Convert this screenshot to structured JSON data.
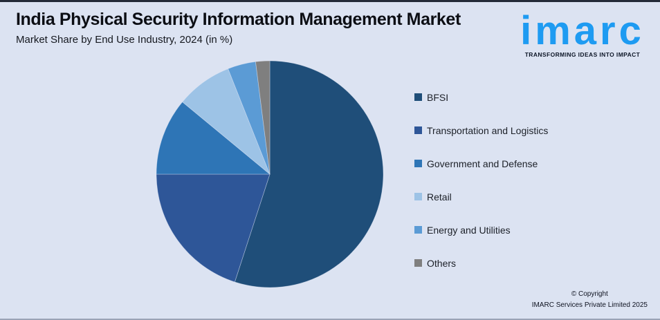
{
  "page": {
    "background_color": "#dce3f2"
  },
  "header": {
    "title": "India Physical Security Information Management Market",
    "subtitle": "Market Share by End Use Industry, 2024 (in %)"
  },
  "logo": {
    "brand": "imarc",
    "tagline": "TRANSFORMING IDEAS INTO IMPACT",
    "brand_color": "#1e9bf2"
  },
  "chart_data": {
    "type": "pie",
    "title": "India Physical Security Information Management Market",
    "subtitle": "Market Share by End Use Industry, 2024 (in %)",
    "labels": [
      "BFSI",
      "Transportation and Logistics",
      "Government and Defense",
      "Retail",
      "Energy and Utilities",
      "Others"
    ],
    "values": [
      55,
      20,
      11,
      8,
      4,
      2
    ],
    "unit": "%",
    "colors": [
      "#1F4E79",
      "#2E5698",
      "#2E75B6",
      "#9DC3E6",
      "#5B9BD5",
      "#7F7F7F"
    ],
    "start_angle_deg_from_top": 0,
    "direction": "clockwise",
    "legend_position": "right",
    "data_labels_shown": false
  },
  "footer": {
    "copyright_line1": "© Copyright",
    "copyright_line2": "IMARC Services Private Limited 2025"
  }
}
